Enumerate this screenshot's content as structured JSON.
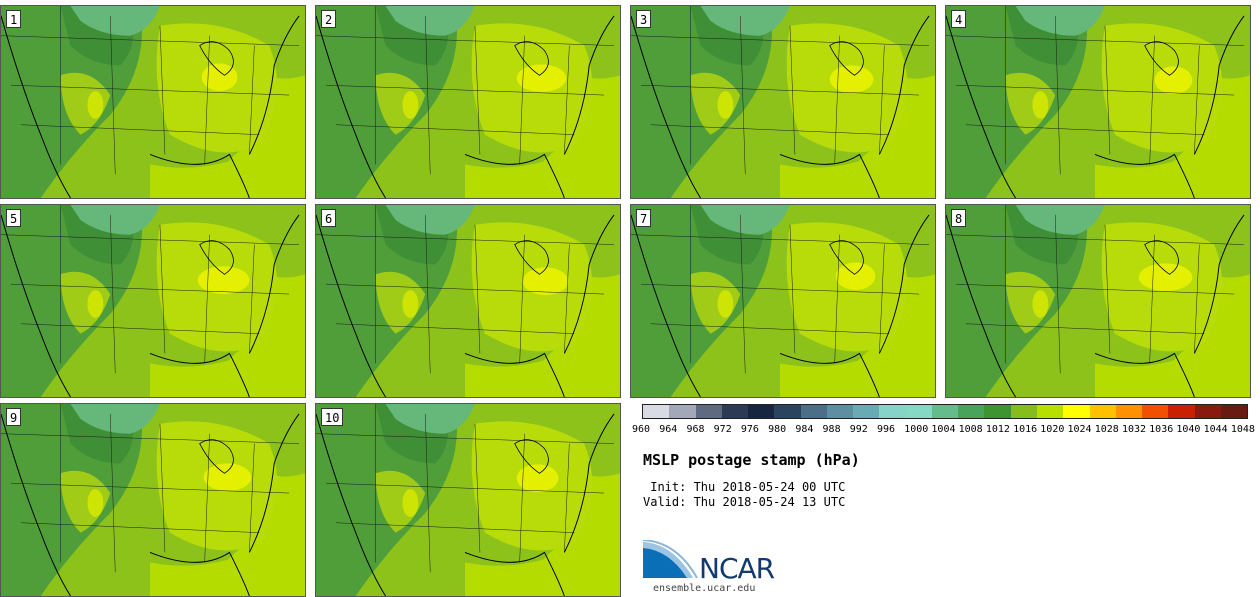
{
  "panels": [
    {
      "label": "1"
    },
    {
      "label": "2"
    },
    {
      "label": "3"
    },
    {
      "label": "4"
    },
    {
      "label": "5"
    },
    {
      "label": "6"
    },
    {
      "label": "7"
    },
    {
      "label": "8"
    },
    {
      "label": "9"
    },
    {
      "label": "10"
    }
  ],
  "colorbar": {
    "labels": [
      "960",
      "964",
      "968",
      "972",
      "976",
      "980",
      "984",
      "988",
      "992",
      "996",
      "1000",
      "1004",
      "1008",
      "1012",
      "1016",
      "1020",
      "1024",
      "1028",
      "1032",
      "1036",
      "1040",
      "1044",
      "1048"
    ],
    "colors": [
      "#d8dbe3",
      "#a3a8b8",
      "#5e6a80",
      "#2d3a55",
      "#172640",
      "#2a4460",
      "#4a6f86",
      "#5d8fa0",
      "#6aaab4",
      "#86d3c8",
      "#85d8c4",
      "#63bc8a",
      "#4aa35a",
      "#3e9430",
      "#84bd1c",
      "#b7df00",
      "#ffff00",
      "#ffc000",
      "#ff9000",
      "#f05000",
      "#c82000",
      "#8a1a10",
      "#6a1a10"
    ]
  },
  "title": "MSLP postage stamp (hPa)",
  "init": " Init: Thu 2018-05-24 00 UTC",
  "valid": "Valid: Thu 2018-05-24 13 UTC",
  "logo": {
    "text": "NCAR"
  },
  "site": "ensemble.ucar.edu"
}
